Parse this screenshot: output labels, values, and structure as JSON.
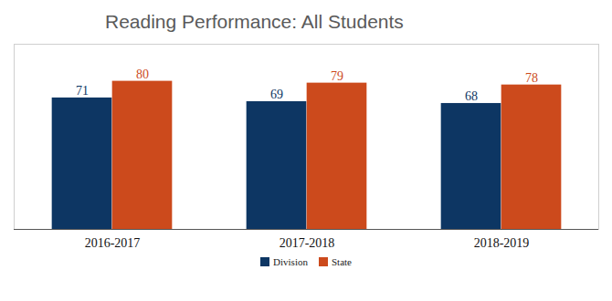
{
  "chart_data": {
    "type": "bar",
    "title": "Reading Performance: All Students",
    "categories": [
      "2016-2017",
      "2017-2018",
      "2018-2019"
    ],
    "series": [
      {
        "name": "Division",
        "color": "#0d3663",
        "values": [
          71,
          69,
          68
        ]
      },
      {
        "name": "State",
        "color": "#cc4a1c",
        "values": [
          80,
          79,
          78
        ]
      }
    ],
    "ylim": [
      0,
      100
    ],
    "tick_labels": "x",
    "data_labels": true,
    "legend": "bottom"
  }
}
